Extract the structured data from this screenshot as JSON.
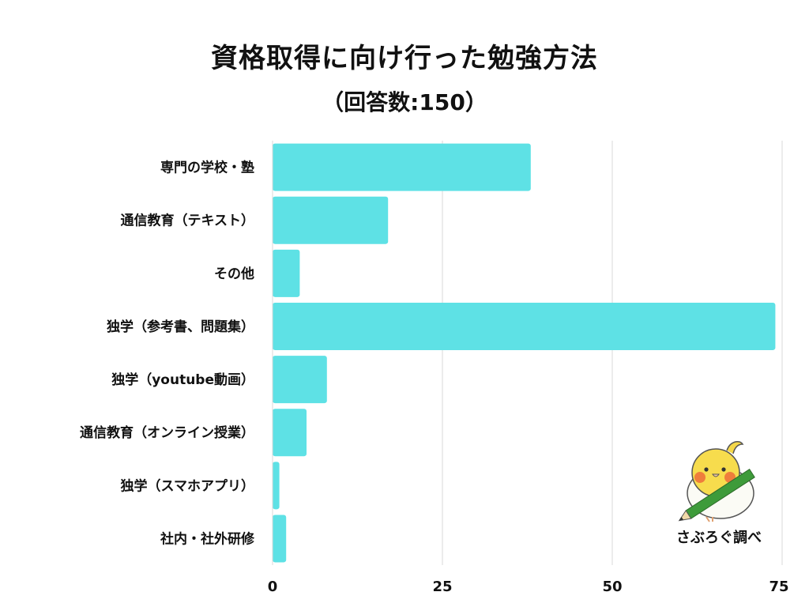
{
  "title": "資格取得に向け行った勉強方法",
  "subtitle": "（回答数:150）",
  "credit": "さぶろぐ調べ",
  "colors": {
    "bar": "#5ee1e5",
    "grid": "#d9d9d9",
    "text": "#111111"
  },
  "chart_data": {
    "type": "bar",
    "orientation": "horizontal",
    "categories": [
      "専門の学校・塾",
      "通信教育（テキスト）",
      "その他",
      "独学（参考書、問題集）",
      "独学（youtube動画）",
      "通信教育（オンライン授業）",
      "独学（スマホアプリ）",
      "社内・社外研修"
    ],
    "values": [
      38,
      17,
      4,
      74,
      8,
      5,
      1,
      2
    ],
    "xlim": [
      0,
      75
    ],
    "xticks": [
      0,
      25,
      50,
      75
    ],
    "grid": true
  }
}
